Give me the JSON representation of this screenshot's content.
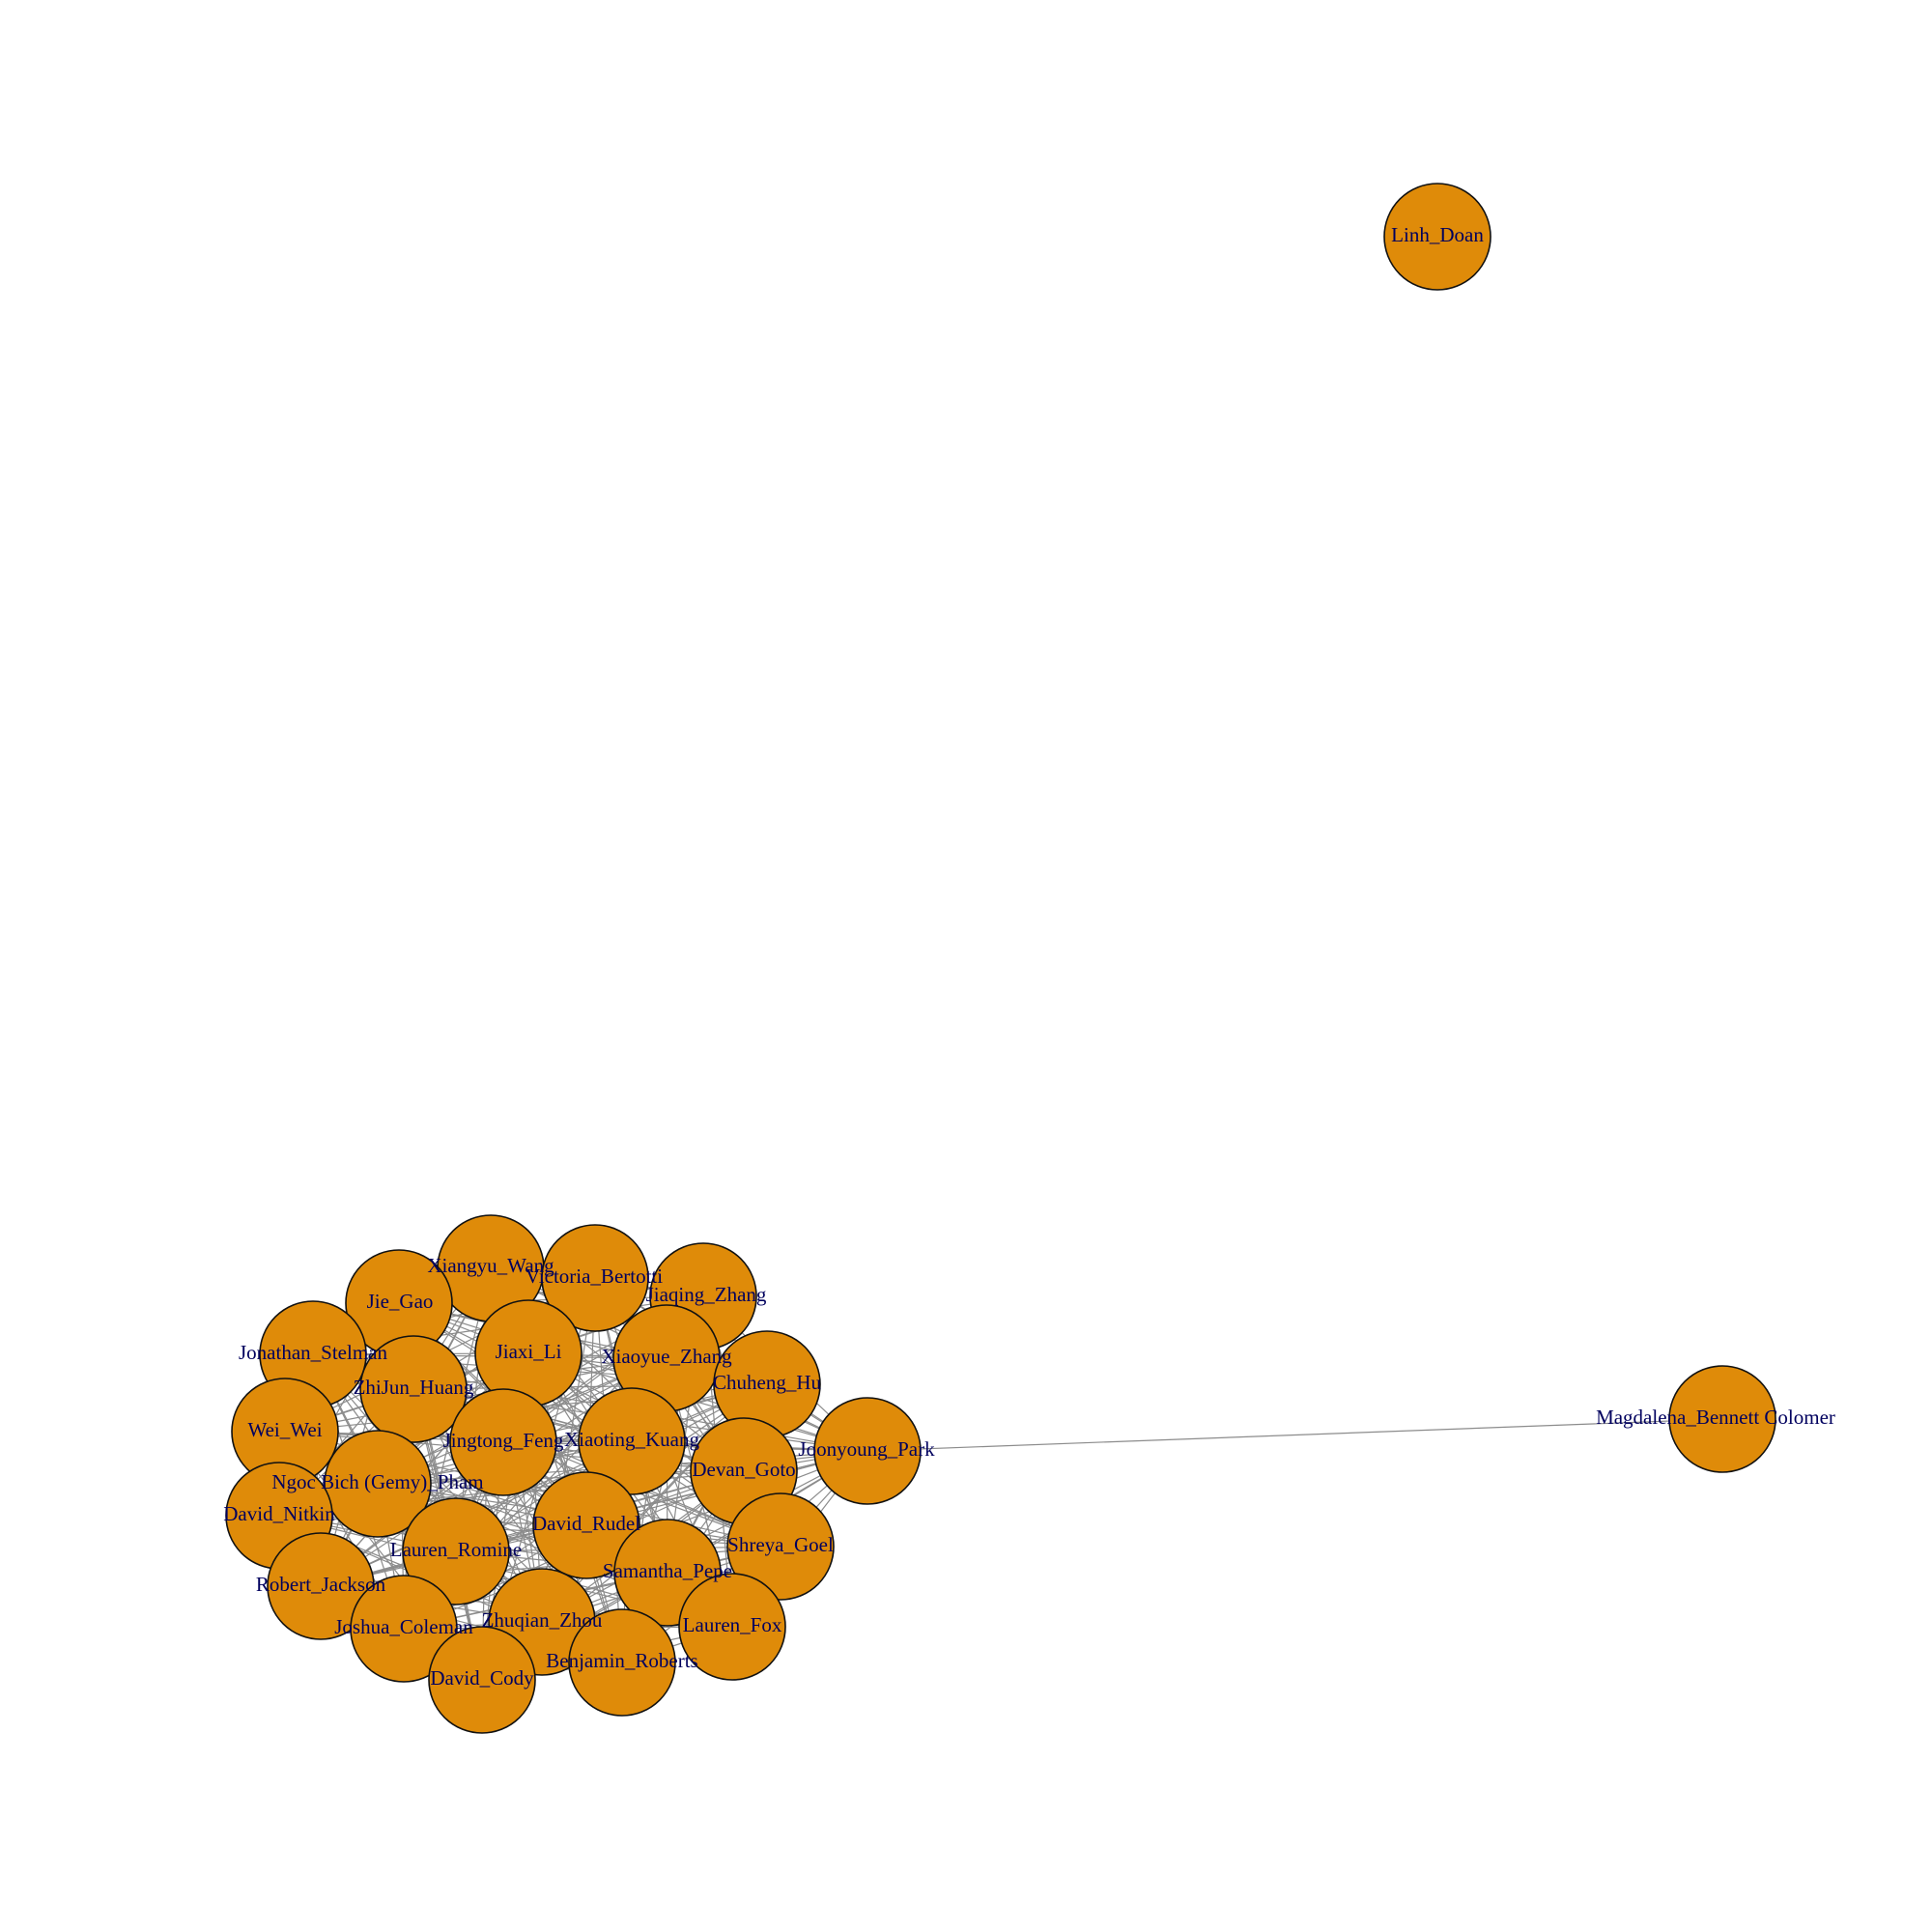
{
  "graph": {
    "type": "network",
    "node_color": "#df8b09",
    "node_border_color": "#111111",
    "edge_color": "#8c8c8c",
    "label_color": "#00005e",
    "nodes": [
      "Linh_Doan",
      "Magdalena_Bennett Colomer",
      "Joonyoung_Park",
      "Xiangyu_Wang",
      "Victoria_Bertotti",
      "Jiaqing_Zhang",
      "Jie_Gao",
      "Jonathan_Stelman",
      "Jiaxi_Li",
      "Xiaoyue_Zhang",
      "Chuheng_Hu",
      "ZhiJun_Huang",
      "Wei_Wei",
      "Jingtong_Feng",
      "Xiaoting_Kuang",
      "Devan_Goto",
      "Ngoc Bich (Gemy)_Pham",
      "David_Nitkin",
      "David_Rudel",
      "Shreya_Goel",
      "Lauren_Romine",
      "Robert_Jackson",
      "Samantha_Pepe",
      "Zhuqian_Zhou",
      "Lauren_Fox",
      "Joshua_Coleman",
      "Benjamin_Roberts",
      "David_Cody"
    ],
    "edges_note": "dense mesh among the clustered nodes; single link Joonyoung_Park to Magdalena_Bennett Colomer; Linh_Doan isolated",
    "links": [
      [
        "Joonyoung_Park",
        "Magdalena_Bennett Colomer"
      ]
    ]
  }
}
